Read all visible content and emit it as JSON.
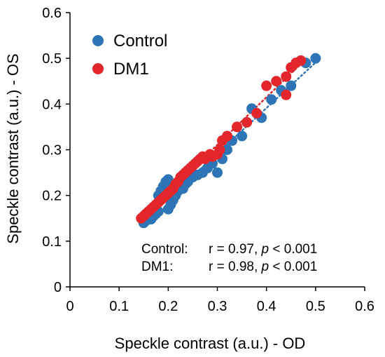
{
  "chart_data": {
    "type": "scatter",
    "title": "",
    "xlabel": "Speckle contrast (a.u.) - OD",
    "ylabel": "Speckle contrast (a.u.) - OS",
    "xlim": [
      0,
      0.6
    ],
    "ylim": [
      0,
      0.6
    ],
    "x_ticks": [
      "0",
      "0.1",
      "0.2",
      "0.3",
      "0.4",
      "0.5",
      "0.6"
    ],
    "y_ticks": [
      "0",
      "0.1",
      "0.2",
      "0.3",
      "0.4",
      "0.5",
      "0.6"
    ],
    "grid": false,
    "legend_position": "top-left",
    "trendlines": "dotted linear fit per series",
    "series": [
      {
        "name": "Control",
        "color": "#2E75B6",
        "points": [
          [
            0.15,
            0.14
          ],
          [
            0.155,
            0.145
          ],
          [
            0.16,
            0.15
          ],
          [
            0.165,
            0.148
          ],
          [
            0.17,
            0.155
          ],
          [
            0.175,
            0.16
          ],
          [
            0.18,
            0.165
          ],
          [
            0.18,
            0.2
          ],
          [
            0.185,
            0.21
          ],
          [
            0.19,
            0.22
          ],
          [
            0.195,
            0.23
          ],
          [
            0.2,
            0.17
          ],
          [
            0.2,
            0.235
          ],
          [
            0.205,
            0.18
          ],
          [
            0.21,
            0.19
          ],
          [
            0.215,
            0.2
          ],
          [
            0.22,
            0.21
          ],
          [
            0.225,
            0.22
          ],
          [
            0.23,
            0.215
          ],
          [
            0.235,
            0.225
          ],
          [
            0.24,
            0.23
          ],
          [
            0.25,
            0.24
          ],
          [
            0.26,
            0.245
          ],
          [
            0.27,
            0.25
          ],
          [
            0.28,
            0.26
          ],
          [
            0.29,
            0.27
          ],
          [
            0.3,
            0.25
          ],
          [
            0.31,
            0.28
          ],
          [
            0.32,
            0.3
          ],
          [
            0.33,
            0.32
          ],
          [
            0.35,
            0.33
          ],
          [
            0.37,
            0.39
          ],
          [
            0.39,
            0.37
          ],
          [
            0.41,
            0.41
          ],
          [
            0.43,
            0.43
          ],
          [
            0.45,
            0.44
          ],
          [
            0.48,
            0.49
          ],
          [
            0.5,
            0.5
          ]
        ]
      },
      {
        "name": "DM1",
        "color": "#E3262B",
        "points": [
          [
            0.145,
            0.15
          ],
          [
            0.15,
            0.155
          ],
          [
            0.155,
            0.16
          ],
          [
            0.16,
            0.165
          ],
          [
            0.165,
            0.17
          ],
          [
            0.17,
            0.175
          ],
          [
            0.175,
            0.18
          ],
          [
            0.18,
            0.185
          ],
          [
            0.185,
            0.19
          ],
          [
            0.19,
            0.195
          ],
          [
            0.195,
            0.2
          ],
          [
            0.2,
            0.205
          ],
          [
            0.205,
            0.21
          ],
          [
            0.21,
            0.215
          ],
          [
            0.215,
            0.225
          ],
          [
            0.22,
            0.23
          ],
          [
            0.225,
            0.24
          ],
          [
            0.23,
            0.245
          ],
          [
            0.235,
            0.25
          ],
          [
            0.24,
            0.255
          ],
          [
            0.245,
            0.26
          ],
          [
            0.25,
            0.265
          ],
          [
            0.255,
            0.27
          ],
          [
            0.26,
            0.275
          ],
          [
            0.265,
            0.28
          ],
          [
            0.27,
            0.285
          ],
          [
            0.275,
            0.28
          ],
          [
            0.28,
            0.285
          ],
          [
            0.285,
            0.29
          ],
          [
            0.29,
            0.285
          ],
          [
            0.3,
            0.29
          ],
          [
            0.305,
            0.3
          ],
          [
            0.31,
            0.32
          ],
          [
            0.32,
            0.33
          ],
          [
            0.34,
            0.35
          ],
          [
            0.36,
            0.36
          ],
          [
            0.38,
            0.38
          ],
          [
            0.4,
            0.44
          ],
          [
            0.42,
            0.45
          ],
          [
            0.44,
            0.46
          ],
          [
            0.44,
            0.42
          ],
          [
            0.45,
            0.48
          ],
          [
            0.46,
            0.49
          ],
          [
            0.47,
            0.495
          ]
        ]
      }
    ],
    "annotations": [
      {
        "label": "Control:",
        "r": "r = 0.97,",
        "p_italic": "p",
        "p_rest": " < 0.001"
      },
      {
        "label": "DM1:",
        "r": "r = 0.98,",
        "p_italic": "p",
        "p_rest": " < 0.001"
      }
    ]
  }
}
